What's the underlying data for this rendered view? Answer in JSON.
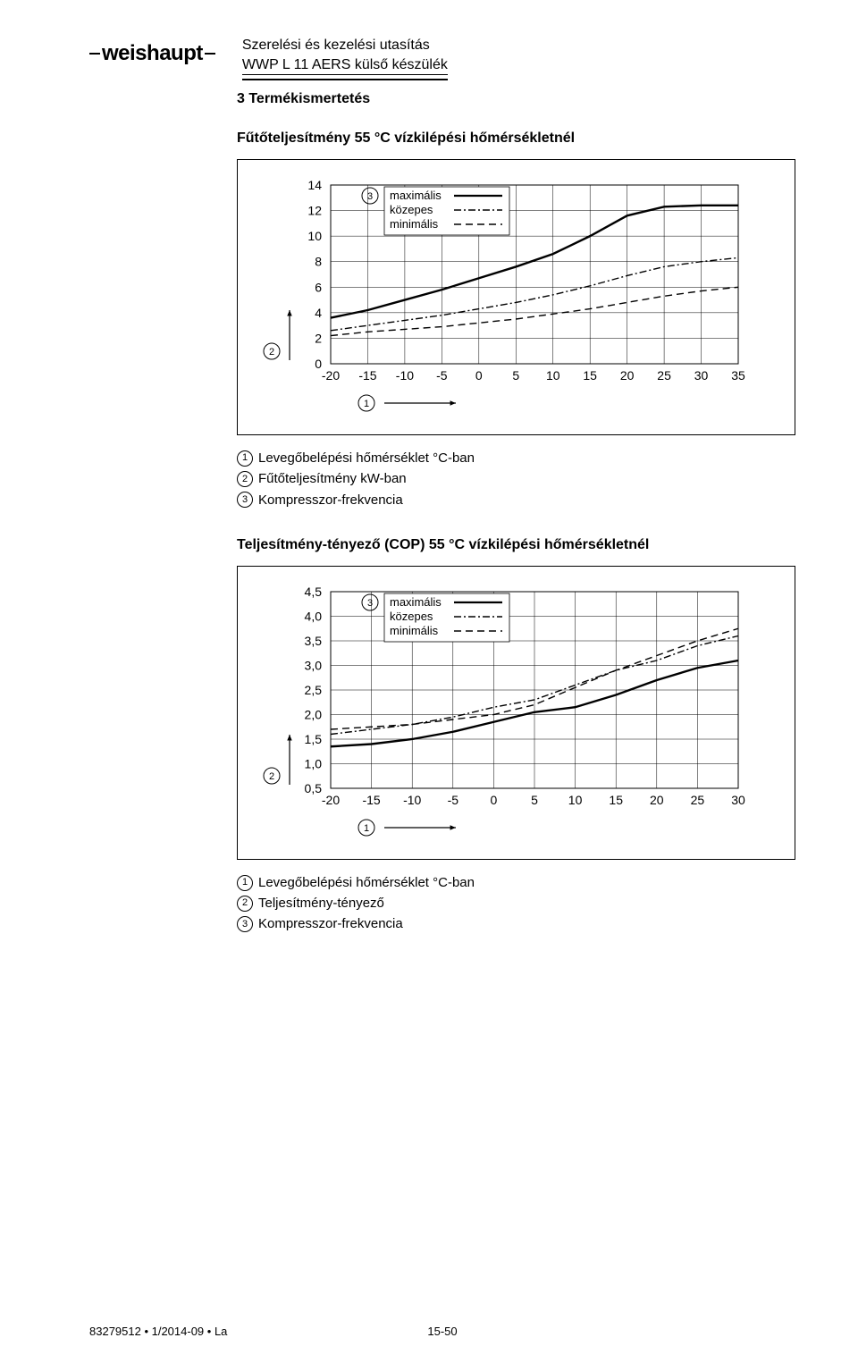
{
  "brand": "weishaupt",
  "doc_line1": "Szerelési és kezelési utasítás",
  "doc_line2": "WWP L 11 AERS külső készülék",
  "section": "3 Termékismertetés",
  "chart1": {
    "title": "Fűtőteljesítmény 55 °C vízkilépési hőmérsékletnél",
    "x_ticks": [
      "-20",
      "-15",
      "-10",
      "-5",
      "0",
      "5",
      "10",
      "15",
      "20",
      "25",
      "30",
      "35"
    ],
    "y_ticks": [
      "0",
      "2",
      "4",
      "6",
      "8",
      "10",
      "12",
      "14"
    ],
    "legend": {
      "ref": "3",
      "l1": "maximális",
      "l2": "közepes",
      "l3": "minimális"
    },
    "axis_y_ref": "2",
    "axis_x_ref": "1",
    "text_color": "#000000",
    "grid_color": "#000000",
    "series_max": [
      [
        -20,
        3.6
      ],
      [
        -15,
        4.2
      ],
      [
        -10,
        5.0
      ],
      [
        -5,
        5.8
      ],
      [
        0,
        6.7
      ],
      [
        5,
        7.6
      ],
      [
        10,
        8.6
      ],
      [
        15,
        10.0
      ],
      [
        20,
        11.6
      ],
      [
        25,
        12.3
      ],
      [
        30,
        12.4
      ],
      [
        35,
        12.4
      ]
    ],
    "series_mid": [
      [
        -20,
        2.6
      ],
      [
        -15,
        3.0
      ],
      [
        -10,
        3.4
      ],
      [
        -5,
        3.8
      ],
      [
        0,
        4.3
      ],
      [
        5,
        4.8
      ],
      [
        10,
        5.4
      ],
      [
        15,
        6.1
      ],
      [
        20,
        6.9
      ],
      [
        25,
        7.6
      ],
      [
        30,
        8.0
      ],
      [
        35,
        8.3
      ]
    ],
    "series_min": [
      [
        -20,
        2.2
      ],
      [
        -15,
        2.5
      ],
      [
        -10,
        2.7
      ],
      [
        -5,
        2.9
      ],
      [
        0,
        3.2
      ],
      [
        5,
        3.5
      ],
      [
        10,
        3.9
      ],
      [
        15,
        4.3
      ],
      [
        20,
        4.8
      ],
      [
        25,
        5.3
      ],
      [
        30,
        5.7
      ],
      [
        35,
        6.0
      ]
    ]
  },
  "chart1_legend": {
    "l1": "Levegőbelépési hőmérséklet °C-ban",
    "l2": "Fűtőteljesítmény kW-ban",
    "l3": "Kompresszor-frekvencia"
  },
  "chart2": {
    "title": "Teljesítmény-tényező (COP) 55 °C vízkilépési hőmérsékletnél",
    "x_ticks": [
      "-20",
      "-15",
      "-10",
      "-5",
      "0",
      "5",
      "10",
      "15",
      "20",
      "25",
      "30"
    ],
    "y_ticks": [
      "0,5",
      "1,0",
      "1,5",
      "2,0",
      "2,5",
      "3,0",
      "3,5",
      "4,0",
      "4,5"
    ],
    "legend": {
      "ref": "3",
      "l1": "maximális",
      "l2": "közepes",
      "l3": "minimális"
    },
    "axis_y_ref": "2",
    "axis_x_ref": "1",
    "series_max": [
      [
        -20,
        1.7
      ],
      [
        -15,
        1.75
      ],
      [
        -10,
        1.8
      ],
      [
        -5,
        1.9
      ],
      [
        0,
        2.0
      ],
      [
        5,
        2.2
      ],
      [
        10,
        2.55
      ],
      [
        15,
        2.9
      ],
      [
        20,
        3.2
      ],
      [
        25,
        3.5
      ],
      [
        30,
        3.75
      ]
    ],
    "series_mid": [
      [
        -20,
        1.6
      ],
      [
        -15,
        1.7
      ],
      [
        -10,
        1.8
      ],
      [
        -5,
        1.95
      ],
      [
        0,
        2.15
      ],
      [
        5,
        2.3
      ],
      [
        10,
        2.6
      ],
      [
        15,
        2.9
      ],
      [
        20,
        3.1
      ],
      [
        25,
        3.4
      ],
      [
        30,
        3.6
      ]
    ],
    "series_min": [
      [
        -20,
        1.35
      ],
      [
        -15,
        1.4
      ],
      [
        -10,
        1.5
      ],
      [
        -5,
        1.65
      ],
      [
        0,
        1.85
      ],
      [
        5,
        2.05
      ],
      [
        10,
        2.15
      ],
      [
        15,
        2.4
      ],
      [
        20,
        2.7
      ],
      [
        25,
        2.95
      ],
      [
        30,
        3.1
      ]
    ]
  },
  "chart2_legend": {
    "l1": "Levegőbelépési hőmérséklet °C-ban",
    "l2": "Teljesítmény-tényező",
    "l3": "Kompresszor-frekvencia"
  },
  "footer_left": "83279512 • 1/2014-09 • La",
  "footer_page": "15-50"
}
